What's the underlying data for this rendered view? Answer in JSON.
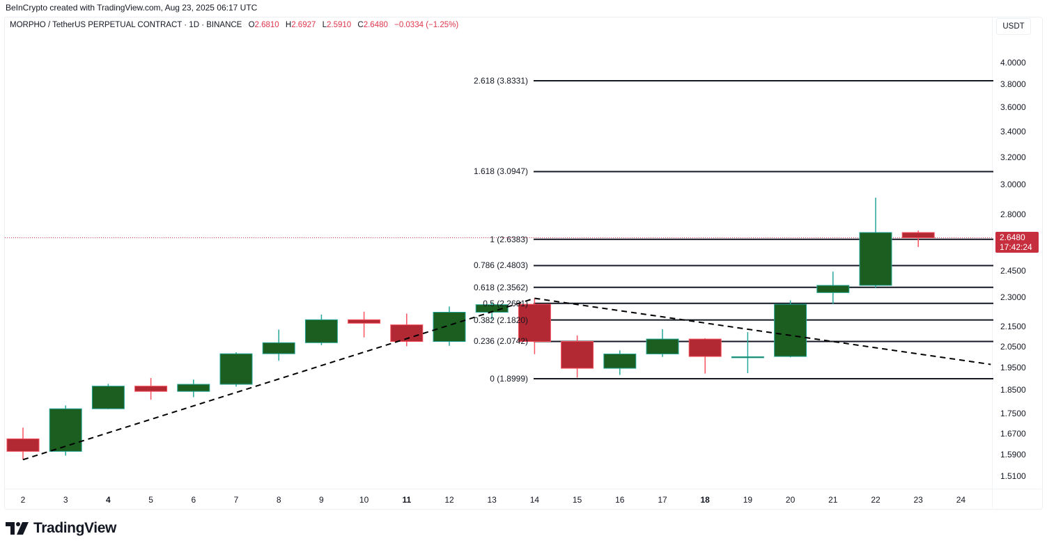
{
  "credit": "BeInCrypto created with TradingView.com, Aug 23, 2025 06:17 UTC",
  "legend": {
    "symbol": "MORPHO / TetherUS PERPETUAL CONTRACT · 1D · BINANCE",
    "open_label": "O",
    "open": "2.6810",
    "high_label": "H",
    "high": "2.6927",
    "low_label": "L",
    "low": "2.5910",
    "close_label": "C",
    "close": "2.6480",
    "change": "−0.0334 (−1.25%)"
  },
  "currency": "USDT",
  "last_price_tag": {
    "price": "2.6480",
    "countdown": "17:42:24"
  },
  "brand": "TradingView",
  "colors": {
    "up_body": "#1b5e20",
    "up_border": "#26a69a",
    "down_body": "#b22833",
    "down_border": "#f7525f",
    "fib_line": "#131722",
    "trend_line": "#000000",
    "last_price_line": "#e0364b",
    "price_tag": "#c62d3d"
  },
  "chart_data": {
    "type": "candlestick",
    "title": "MORPHO / TetherUS PERPETUAL CONTRACT · 1D · BINANCE",
    "xlabel": "",
    "ylabel": "USDT",
    "scale": "log",
    "ylim": [
      1.45,
      4.1
    ],
    "y_ticks": [
      "4.0000",
      "3.8000",
      "3.6000",
      "3.4000",
      "3.2000",
      "3.0000",
      "2.8000",
      "2.4500",
      "2.3000",
      "2.1500",
      "2.0500",
      "1.9500",
      "1.8500",
      "1.7500",
      "1.6700",
      "1.5900",
      "1.5100"
    ],
    "x_ticks": [
      {
        "label": "2",
        "bold": false
      },
      {
        "label": "3",
        "bold": false
      },
      {
        "label": "4",
        "bold": true
      },
      {
        "label": "5",
        "bold": false
      },
      {
        "label": "6",
        "bold": false
      },
      {
        "label": "7",
        "bold": false
      },
      {
        "label": "8",
        "bold": false
      },
      {
        "label": "9",
        "bold": false
      },
      {
        "label": "10",
        "bold": false
      },
      {
        "label": "11",
        "bold": true
      },
      {
        "label": "12",
        "bold": false
      },
      {
        "label": "13",
        "bold": false
      },
      {
        "label": "14",
        "bold": false
      },
      {
        "label": "15",
        "bold": false
      },
      {
        "label": "16",
        "bold": false
      },
      {
        "label": "17",
        "bold": false
      },
      {
        "label": "18",
        "bold": true
      },
      {
        "label": "19",
        "bold": false
      },
      {
        "label": "20",
        "bold": false
      },
      {
        "label": "21",
        "bold": false
      },
      {
        "label": "22",
        "bold": false
      },
      {
        "label": "23",
        "bold": false
      },
      {
        "label": "24",
        "bold": false
      }
    ],
    "candles": [
      {
        "day": 2,
        "o": 1.649,
        "h": 1.693,
        "l": 1.57,
        "c": 1.601
      },
      {
        "day": 3,
        "o": 1.601,
        "h": 1.784,
        "l": 1.585,
        "c": 1.77
      },
      {
        "day": 4,
        "o": 1.77,
        "h": 1.877,
        "l": 1.768,
        "c": 1.867
      },
      {
        "day": 5,
        "o": 1.867,
        "h": 1.903,
        "l": 1.808,
        "c": 1.844
      },
      {
        "day": 6,
        "o": 1.844,
        "h": 1.896,
        "l": 1.819,
        "c": 1.875
      },
      {
        "day": 7,
        "o": 1.875,
        "h": 2.022,
        "l": 1.865,
        "c": 2.015
      },
      {
        "day": 8,
        "o": 2.015,
        "h": 2.133,
        "l": 1.982,
        "c": 2.068
      },
      {
        "day": 9,
        "o": 2.068,
        "h": 2.21,
        "l": 2.056,
        "c": 2.183
      },
      {
        "day": 10,
        "o": 2.183,
        "h": 2.225,
        "l": 2.094,
        "c": 2.165
      },
      {
        "day": 11,
        "o": 2.157,
        "h": 2.215,
        "l": 2.051,
        "c": 2.074
      },
      {
        "day": 12,
        "o": 2.074,
        "h": 2.252,
        "l": 2.053,
        "c": 2.222
      },
      {
        "day": 13,
        "o": 2.222,
        "h": 2.274,
        "l": 2.184,
        "c": 2.262
      },
      {
        "day": 14,
        "o": 2.264,
        "h": 2.296,
        "l": 2.013,
        "c": 2.074
      },
      {
        "day": 15,
        "o": 2.074,
        "h": 2.104,
        "l": 1.905,
        "c": 1.947
      },
      {
        "day": 16,
        "o": 1.947,
        "h": 2.031,
        "l": 1.917,
        "c": 2.014
      },
      {
        "day": 17,
        "o": 2.014,
        "h": 2.135,
        "l": 2.0,
        "c": 2.086
      },
      {
        "day": 18,
        "o": 2.086,
        "h": 2.09,
        "l": 1.923,
        "c": 2.002
      },
      {
        "day": 19,
        "o": 2.0,
        "h": 2.12,
        "l": 1.925,
        "c": 2.001
      },
      {
        "day": 20,
        "o": 2.002,
        "h": 2.285,
        "l": 1.998,
        "c": 2.264
      },
      {
        "day": 21,
        "o": 2.327,
        "h": 2.445,
        "l": 2.265,
        "c": 2.367
      },
      {
        "day": 22,
        "o": 2.367,
        "h": 2.91,
        "l": 2.354,
        "c": 2.681
      },
      {
        "day": 23,
        "o": 2.681,
        "h": 2.6927,
        "l": 2.591,
        "c": 2.648
      }
    ],
    "fib_levels": [
      {
        "ratio": "2.618",
        "price": 3.8331,
        "label": "2.618 (3.8331)"
      },
      {
        "ratio": "1.618",
        "price": 3.0947,
        "label": "1.618 (3.0947)"
      },
      {
        "ratio": "1",
        "price": 2.6383,
        "label": "1 (2.6383)"
      },
      {
        "ratio": "0.786",
        "price": 2.4803,
        "label": "0.786 (2.4803)"
      },
      {
        "ratio": "0.618",
        "price": 2.3562,
        "label": "0.618 (2.3562)"
      },
      {
        "ratio": "0.5",
        "price": 2.2691,
        "label": "0.5 (2.2691)"
      },
      {
        "ratio": "0.382",
        "price": 2.182,
        "label": "0.382 (2.1820)"
      },
      {
        "ratio": "0.236",
        "price": 2.0742,
        "label": "0.236 (2.0742)"
      },
      {
        "ratio": "0",
        "price": 1.8999,
        "label": "0 (1.8999)"
      }
    ],
    "trend_lines": [
      {
        "name": "ascending-support",
        "style": "dashed",
        "from": {
          "day": 2,
          "price": 1.57
        },
        "to": {
          "day": 14,
          "price": 2.296
        }
      },
      {
        "name": "descending-resistance",
        "style": "dashed",
        "from": {
          "day": 14,
          "price": 2.296
        },
        "to": {
          "day": 24.7,
          "price": 1.965
        }
      }
    ],
    "last_price": 2.648,
    "annotations": [
      "2.6480",
      "17:42:24"
    ]
  }
}
